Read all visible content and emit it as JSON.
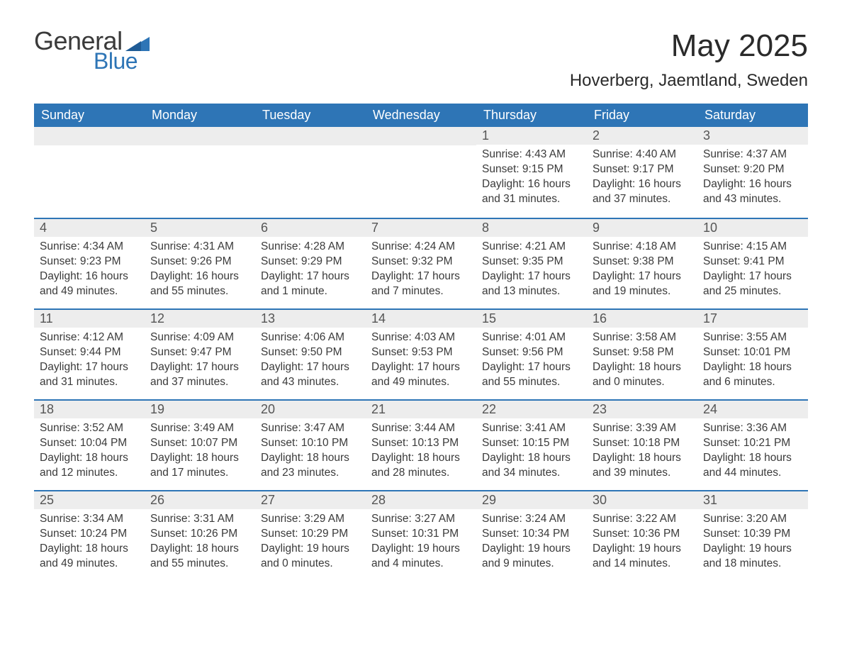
{
  "logo": {
    "word1": "General",
    "word2": "Blue",
    "text_color": "#3a3a3a",
    "accent_color": "#2e75b6"
  },
  "header": {
    "month_title": "May 2025",
    "location": "Hoverberg, Jaemtland, Sweden"
  },
  "colors": {
    "header_bg": "#2e75b6",
    "header_text": "#ffffff",
    "daynum_bg": "#ededed",
    "border": "#2e75b6",
    "body_text": "#3a3a3a",
    "page_bg": "#ffffff"
  },
  "weekdays": [
    "Sunday",
    "Monday",
    "Tuesday",
    "Wednesday",
    "Thursday",
    "Friday",
    "Saturday"
  ],
  "weeks": [
    [
      null,
      null,
      null,
      null,
      {
        "n": "1",
        "sunrise": "Sunrise: 4:43 AM",
        "sunset": "Sunset: 9:15 PM",
        "day1": "Daylight: 16 hours",
        "day2": "and 31 minutes."
      },
      {
        "n": "2",
        "sunrise": "Sunrise: 4:40 AM",
        "sunset": "Sunset: 9:17 PM",
        "day1": "Daylight: 16 hours",
        "day2": "and 37 minutes."
      },
      {
        "n": "3",
        "sunrise": "Sunrise: 4:37 AM",
        "sunset": "Sunset: 9:20 PM",
        "day1": "Daylight: 16 hours",
        "day2": "and 43 minutes."
      }
    ],
    [
      {
        "n": "4",
        "sunrise": "Sunrise: 4:34 AM",
        "sunset": "Sunset: 9:23 PM",
        "day1": "Daylight: 16 hours",
        "day2": "and 49 minutes."
      },
      {
        "n": "5",
        "sunrise": "Sunrise: 4:31 AM",
        "sunset": "Sunset: 9:26 PM",
        "day1": "Daylight: 16 hours",
        "day2": "and 55 minutes."
      },
      {
        "n": "6",
        "sunrise": "Sunrise: 4:28 AM",
        "sunset": "Sunset: 9:29 PM",
        "day1": "Daylight: 17 hours",
        "day2": "and 1 minute."
      },
      {
        "n": "7",
        "sunrise": "Sunrise: 4:24 AM",
        "sunset": "Sunset: 9:32 PM",
        "day1": "Daylight: 17 hours",
        "day2": "and 7 minutes."
      },
      {
        "n": "8",
        "sunrise": "Sunrise: 4:21 AM",
        "sunset": "Sunset: 9:35 PM",
        "day1": "Daylight: 17 hours",
        "day2": "and 13 minutes."
      },
      {
        "n": "9",
        "sunrise": "Sunrise: 4:18 AM",
        "sunset": "Sunset: 9:38 PM",
        "day1": "Daylight: 17 hours",
        "day2": "and 19 minutes."
      },
      {
        "n": "10",
        "sunrise": "Sunrise: 4:15 AM",
        "sunset": "Sunset: 9:41 PM",
        "day1": "Daylight: 17 hours",
        "day2": "and 25 minutes."
      }
    ],
    [
      {
        "n": "11",
        "sunrise": "Sunrise: 4:12 AM",
        "sunset": "Sunset: 9:44 PM",
        "day1": "Daylight: 17 hours",
        "day2": "and 31 minutes."
      },
      {
        "n": "12",
        "sunrise": "Sunrise: 4:09 AM",
        "sunset": "Sunset: 9:47 PM",
        "day1": "Daylight: 17 hours",
        "day2": "and 37 minutes."
      },
      {
        "n": "13",
        "sunrise": "Sunrise: 4:06 AM",
        "sunset": "Sunset: 9:50 PM",
        "day1": "Daylight: 17 hours",
        "day2": "and 43 minutes."
      },
      {
        "n": "14",
        "sunrise": "Sunrise: 4:03 AM",
        "sunset": "Sunset: 9:53 PM",
        "day1": "Daylight: 17 hours",
        "day2": "and 49 minutes."
      },
      {
        "n": "15",
        "sunrise": "Sunrise: 4:01 AM",
        "sunset": "Sunset: 9:56 PM",
        "day1": "Daylight: 17 hours",
        "day2": "and 55 minutes."
      },
      {
        "n": "16",
        "sunrise": "Sunrise: 3:58 AM",
        "sunset": "Sunset: 9:58 PM",
        "day1": "Daylight: 18 hours",
        "day2": "and 0 minutes."
      },
      {
        "n": "17",
        "sunrise": "Sunrise: 3:55 AM",
        "sunset": "Sunset: 10:01 PM",
        "day1": "Daylight: 18 hours",
        "day2": "and 6 minutes."
      }
    ],
    [
      {
        "n": "18",
        "sunrise": "Sunrise: 3:52 AM",
        "sunset": "Sunset: 10:04 PM",
        "day1": "Daylight: 18 hours",
        "day2": "and 12 minutes."
      },
      {
        "n": "19",
        "sunrise": "Sunrise: 3:49 AM",
        "sunset": "Sunset: 10:07 PM",
        "day1": "Daylight: 18 hours",
        "day2": "and 17 minutes."
      },
      {
        "n": "20",
        "sunrise": "Sunrise: 3:47 AM",
        "sunset": "Sunset: 10:10 PM",
        "day1": "Daylight: 18 hours",
        "day2": "and 23 minutes."
      },
      {
        "n": "21",
        "sunrise": "Sunrise: 3:44 AM",
        "sunset": "Sunset: 10:13 PM",
        "day1": "Daylight: 18 hours",
        "day2": "and 28 minutes."
      },
      {
        "n": "22",
        "sunrise": "Sunrise: 3:41 AM",
        "sunset": "Sunset: 10:15 PM",
        "day1": "Daylight: 18 hours",
        "day2": "and 34 minutes."
      },
      {
        "n": "23",
        "sunrise": "Sunrise: 3:39 AM",
        "sunset": "Sunset: 10:18 PM",
        "day1": "Daylight: 18 hours",
        "day2": "and 39 minutes."
      },
      {
        "n": "24",
        "sunrise": "Sunrise: 3:36 AM",
        "sunset": "Sunset: 10:21 PM",
        "day1": "Daylight: 18 hours",
        "day2": "and 44 minutes."
      }
    ],
    [
      {
        "n": "25",
        "sunrise": "Sunrise: 3:34 AM",
        "sunset": "Sunset: 10:24 PM",
        "day1": "Daylight: 18 hours",
        "day2": "and 49 minutes."
      },
      {
        "n": "26",
        "sunrise": "Sunrise: 3:31 AM",
        "sunset": "Sunset: 10:26 PM",
        "day1": "Daylight: 18 hours",
        "day2": "and 55 minutes."
      },
      {
        "n": "27",
        "sunrise": "Sunrise: 3:29 AM",
        "sunset": "Sunset: 10:29 PM",
        "day1": "Daylight: 19 hours",
        "day2": "and 0 minutes."
      },
      {
        "n": "28",
        "sunrise": "Sunrise: 3:27 AM",
        "sunset": "Sunset: 10:31 PM",
        "day1": "Daylight: 19 hours",
        "day2": "and 4 minutes."
      },
      {
        "n": "29",
        "sunrise": "Sunrise: 3:24 AM",
        "sunset": "Sunset: 10:34 PM",
        "day1": "Daylight: 19 hours",
        "day2": "and 9 minutes."
      },
      {
        "n": "30",
        "sunrise": "Sunrise: 3:22 AM",
        "sunset": "Sunset: 10:36 PM",
        "day1": "Daylight: 19 hours",
        "day2": "and 14 minutes."
      },
      {
        "n": "31",
        "sunrise": "Sunrise: 3:20 AM",
        "sunset": "Sunset: 10:39 PM",
        "day1": "Daylight: 19 hours",
        "day2": "and 18 minutes."
      }
    ]
  ]
}
